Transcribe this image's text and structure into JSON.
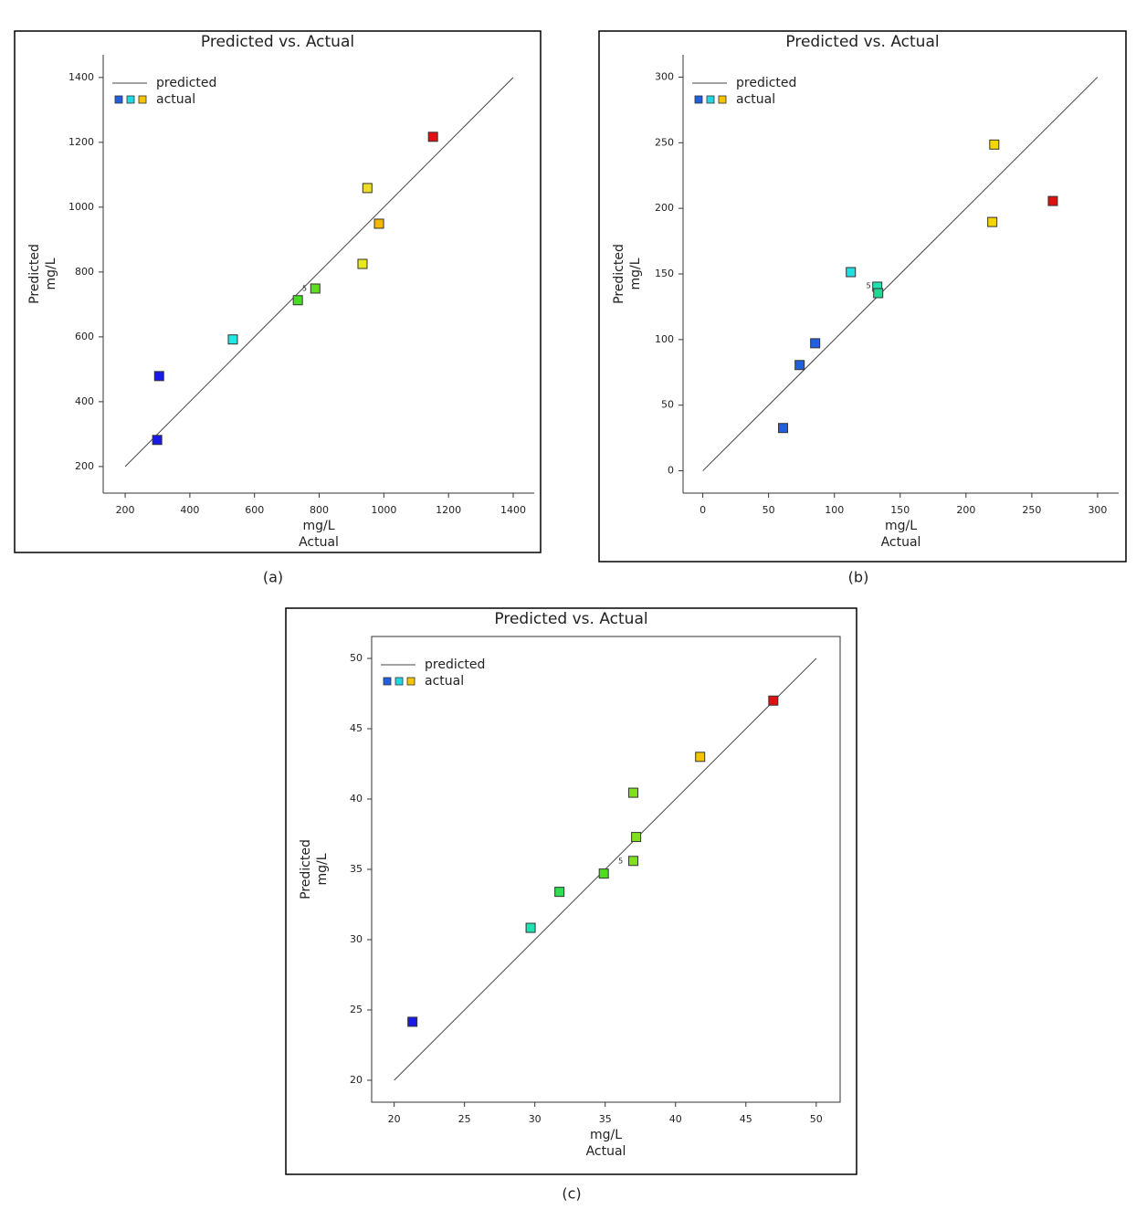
{
  "chart_data": [
    {
      "type": "scatter",
      "title": "Predicted vs. Actual",
      "caption": "(a)",
      "xlabel": [
        "mg/L",
        "Actual"
      ],
      "ylabel": [
        "Predicted",
        "mg/L"
      ],
      "xlim": [
        132,
        1465
      ],
      "ylim": [
        118,
        1470
      ],
      "xticks": [
        200,
        400,
        600,
        800,
        1000,
        1200,
        1400
      ],
      "yticks": [
        200,
        400,
        600,
        800,
        1000,
        1200,
        1400
      ],
      "series": [
        {
          "name": "predicted",
          "color": "#444444",
          "x": [
            200,
            1400
          ],
          "values": [
            200,
            1400
          ]
        },
        {
          "name": "actual",
          "legend_colors": [
            "#1f5fe0",
            "#22d8e0",
            "#f5c400"
          ],
          "x": [
            299,
            305,
            533,
            734,
            788,
            934,
            949,
            985,
            1152
          ],
          "values": [
            282,
            479,
            592,
            713,
            749,
            825,
            1059,
            949,
            1217
          ],
          "colors": [
            "#1a1ae6",
            "#1a1ae6",
            "#22e6e6",
            "#44dd22",
            "#60dd20",
            "#e8e820",
            "#f0dc20",
            "#f5b800",
            "#e01010"
          ]
        }
      ],
      "annotations": [
        {
          "text": "5",
          "x": 755,
          "y": 749
        }
      ]
    },
    {
      "type": "scatter",
      "title": "Predicted vs. Actual",
      "caption": "(b)",
      "xlabel": [
        "mg/L",
        "Actual"
      ],
      "ylabel": [
        "Predicted",
        "mg/L"
      ],
      "xlim": [
        -15,
        316
      ],
      "ylim": [
        -17,
        317
      ],
      "xticks": [
        0,
        50,
        100,
        150,
        200,
        250,
        300
      ],
      "yticks": [
        0,
        50,
        100,
        150,
        200,
        250,
        300
      ],
      "series": [
        {
          "name": "predicted",
          "color": "#444444",
          "x": [
            0,
            300
          ],
          "values": [
            0,
            300
          ]
        },
        {
          "name": "actual",
          "legend_colors": [
            "#1f5fe0",
            "#22d8e0",
            "#f5c400"
          ],
          "x": [
            61,
            73.6,
            85.4,
            112.5,
            132.6,
            133.3,
            220,
            221.5,
            266
          ],
          "values": [
            32.6,
            80.6,
            97.2,
            151.4,
            140.3,
            135.4,
            189.6,
            248.6,
            205.6
          ],
          "colors": [
            "#1f5fe0",
            "#1f5fe0",
            "#1f5fe0",
            "#22e0e0",
            "#22e0b0",
            "#22d890",
            "#f5d400",
            "#f5d400",
            "#e01010"
          ]
        }
      ],
      "annotations": [
        {
          "text": "5",
          "x": 126,
          "y": 141
        }
      ]
    },
    {
      "type": "scatter",
      "title": "Predicted vs. Actual",
      "caption": "(c)",
      "xlabel": [
        "mg/L",
        "Actual"
      ],
      "ylabel": [
        "Predicted",
        "mg/L"
      ],
      "xlim": [
        18.4,
        51.7
      ],
      "ylim": [
        18.44,
        51.56
      ],
      "xticks": [
        20,
        25,
        30,
        35,
        40,
        45,
        50
      ],
      "yticks": [
        20,
        25,
        30,
        35,
        40,
        45,
        50
      ],
      "series": [
        {
          "name": "predicted",
          "color": "#444444",
          "x": [
            20,
            50
          ],
          "values": [
            20,
            50
          ]
        },
        {
          "name": "actual",
          "legend_colors": [
            "#1f5fe0",
            "#22d8e0",
            "#f5c400"
          ],
          "x": [
            21.3,
            29.7,
            31.75,
            34.9,
            37,
            37.2,
            37,
            41.75,
            46.95
          ],
          "values": [
            24.16,
            30.84,
            33.4,
            34.7,
            35.6,
            37.3,
            40.45,
            43.0,
            47.0
          ],
          "colors": [
            "#1a1ae6",
            "#22e0b0",
            "#30dd50",
            "#50dd20",
            "#80e020",
            "#80e020",
            "#80e020",
            "#f5c400",
            "#e01010"
          ]
        }
      ],
      "annotations": [
        {
          "text": "5",
          "x": 36.1,
          "y": 35.6
        }
      ]
    }
  ]
}
